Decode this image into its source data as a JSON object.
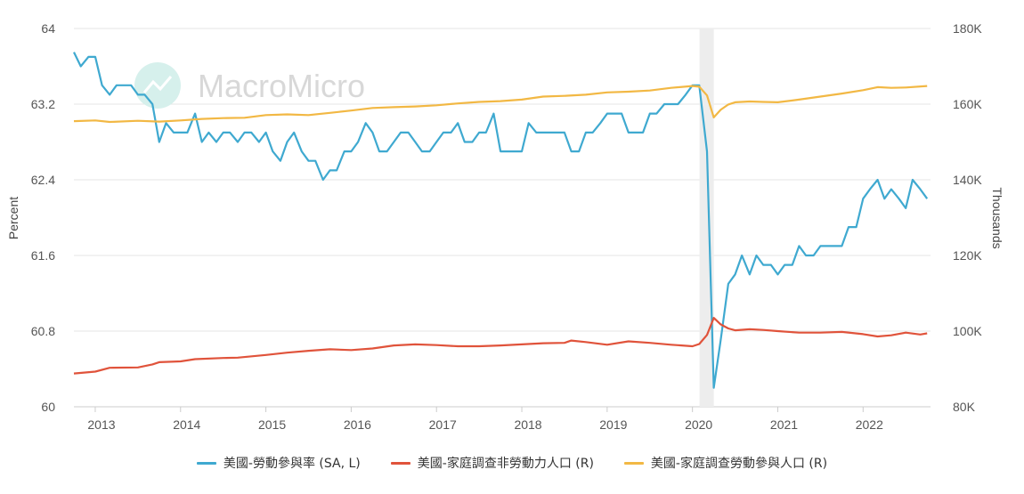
{
  "watermark": "MacroMicro",
  "chart_data": {
    "type": "line",
    "left_axis": {
      "label": "Percent",
      "ticks": [
        "64",
        "63.2",
        "62.4",
        "61.6",
        "60.8",
        "60"
      ],
      "range": [
        60,
        64
      ]
    },
    "right_axis": {
      "label": "Thousands",
      "ticks": [
        "180K",
        "160K",
        "140K",
        "120K",
        "100K",
        "80K"
      ],
      "range": [
        80,
        180
      ]
    },
    "x_ticks": [
      "2013",
      "2014",
      "2015",
      "2016",
      "2017",
      "2018",
      "2019",
      "2020",
      "2021",
      "2022"
    ],
    "x_range": [
      2012.75,
      2022.79
    ],
    "shaded_period": [
      "2020-02",
      "2020-04"
    ],
    "series": [
      {
        "name": "美國-勞動參與率 (SA, L)",
        "axis": "left",
        "color": "#3fa9d0",
        "x": [
          2012.75,
          2012.83,
          2012.92,
          2013.0,
          2013.08,
          2013.17,
          2013.25,
          2013.33,
          2013.42,
          2013.5,
          2013.58,
          2013.67,
          2013.75,
          2013.83,
          2013.92,
          2014.0,
          2014.08,
          2014.17,
          2014.25,
          2014.33,
          2014.42,
          2014.5,
          2014.58,
          2014.67,
          2014.75,
          2014.83,
          2014.92,
          2015.0,
          2015.08,
          2015.17,
          2015.25,
          2015.33,
          2015.42,
          2015.5,
          2015.58,
          2015.67,
          2015.75,
          2015.83,
          2015.92,
          2016.0,
          2016.08,
          2016.17,
          2016.25,
          2016.33,
          2016.42,
          2016.5,
          2016.58,
          2016.67,
          2016.75,
          2016.83,
          2016.92,
          2017.0,
          2017.08,
          2017.17,
          2017.25,
          2017.33,
          2017.42,
          2017.5,
          2017.58,
          2017.67,
          2017.75,
          2017.83,
          2017.92,
          2018.0,
          2018.08,
          2018.17,
          2018.25,
          2018.33,
          2018.42,
          2018.5,
          2018.58,
          2018.67,
          2018.75,
          2018.83,
          2018.92,
          2019.0,
          2019.08,
          2019.17,
          2019.25,
          2019.33,
          2019.42,
          2019.5,
          2019.58,
          2019.67,
          2019.75,
          2019.83,
          2019.92,
          2020.0,
          2020.08,
          2020.17,
          2020.25,
          2020.33,
          2020.42,
          2020.5,
          2020.58,
          2020.67,
          2020.75,
          2020.83,
          2020.92,
          2021.0,
          2021.08,
          2021.17,
          2021.25,
          2021.33,
          2021.42,
          2021.5,
          2021.58,
          2021.67,
          2021.75,
          2021.83,
          2021.92,
          2022.0,
          2022.08,
          2022.17,
          2022.25,
          2022.33,
          2022.42,
          2022.5,
          2022.58,
          2022.67,
          2022.75
        ],
        "values": [
          63.75,
          63.6,
          63.7,
          63.7,
          63.4,
          63.3,
          63.4,
          63.4,
          63.4,
          63.3,
          63.3,
          63.2,
          62.8,
          63.0,
          62.9,
          62.9,
          62.9,
          63.1,
          62.8,
          62.9,
          62.8,
          62.9,
          62.9,
          62.8,
          62.9,
          62.9,
          62.8,
          62.9,
          62.7,
          62.6,
          62.8,
          62.9,
          62.7,
          62.6,
          62.6,
          62.4,
          62.5,
          62.5,
          62.7,
          62.7,
          62.8,
          63.0,
          62.9,
          62.7,
          62.7,
          62.8,
          62.9,
          62.9,
          62.8,
          62.7,
          62.7,
          62.8,
          62.9,
          62.9,
          63.0,
          62.8,
          62.8,
          62.9,
          62.9,
          63.1,
          62.7,
          62.7,
          62.7,
          62.7,
          63.0,
          62.9,
          62.9,
          62.9,
          62.9,
          62.9,
          62.7,
          62.7,
          62.9,
          62.9,
          63.0,
          63.1,
          63.1,
          63.1,
          62.9,
          62.9,
          62.9,
          63.1,
          63.1,
          63.2,
          63.2,
          63.2,
          63.3,
          63.4,
          63.4,
          62.7,
          60.2,
          60.7,
          61.3,
          61.4,
          61.6,
          61.4,
          61.6,
          61.5,
          61.5,
          61.4,
          61.5,
          61.5,
          61.7,
          61.6,
          61.6,
          61.7,
          61.7,
          61.7,
          61.7,
          61.9,
          61.9,
          62.2,
          62.3,
          62.4,
          62.2,
          62.3,
          62.2,
          62.1,
          62.4,
          62.3,
          62.2
        ]
      },
      {
        "name": "美國-家庭調查非勞動力人口 (R)",
        "axis": "right",
        "color": "#e0533b",
        "x": [
          2012.75,
          2013.0,
          2013.17,
          2013.5,
          2013.67,
          2013.75,
          2014.0,
          2014.17,
          2014.5,
          2014.67,
          2015.0,
          2015.25,
          2015.5,
          2015.75,
          2016.0,
          2016.25,
          2016.5,
          2016.75,
          2017.0,
          2017.25,
          2017.5,
          2017.75,
          2018.0,
          2018.25,
          2018.5,
          2018.58,
          2018.75,
          2019.0,
          2019.25,
          2019.5,
          2019.75,
          2020.0,
          2020.08,
          2020.17,
          2020.25,
          2020.33,
          2020.42,
          2020.5,
          2020.67,
          2020.83,
          2021.0,
          2021.25,
          2021.5,
          2021.75,
          2022.0,
          2022.17,
          2022.33,
          2022.5,
          2022.67,
          2022.75
        ],
        "values": [
          88.8,
          89.3,
          90.3,
          90.4,
          91.2,
          91.8,
          92.0,
          92.6,
          92.9,
          93.0,
          93.7,
          94.3,
          94.8,
          95.2,
          95.0,
          95.4,
          96.2,
          96.5,
          96.3,
          96.0,
          96.0,
          96.2,
          96.5,
          96.8,
          96.9,
          97.5,
          97.1,
          96.4,
          97.3,
          96.9,
          96.4,
          96.0,
          96.6,
          99.0,
          103.5,
          101.8,
          100.7,
          100.2,
          100.5,
          100.3,
          100.0,
          99.6,
          99.6,
          99.8,
          99.2,
          98.6,
          98.9,
          99.6,
          99.1,
          99.4
        ]
      },
      {
        "name": "美國-家庭調查勞動參與人口 (R)",
        "axis": "right",
        "color": "#f2b844",
        "x": [
          2012.75,
          2013.0,
          2013.17,
          2013.5,
          2013.75,
          2014.0,
          2014.25,
          2014.5,
          2014.75,
          2015.0,
          2015.25,
          2015.5,
          2015.75,
          2016.0,
          2016.25,
          2016.5,
          2016.75,
          2017.0,
          2017.25,
          2017.5,
          2017.75,
          2018.0,
          2018.25,
          2018.5,
          2018.75,
          2019.0,
          2019.25,
          2019.5,
          2019.75,
          2020.0,
          2020.08,
          2020.17,
          2020.25,
          2020.33,
          2020.42,
          2020.5,
          2020.67,
          2020.83,
          2021.0,
          2021.25,
          2021.5,
          2021.75,
          2022.0,
          2022.17,
          2022.33,
          2022.5,
          2022.75
        ],
        "values": [
          155.5,
          155.7,
          155.3,
          155.6,
          155.4,
          155.7,
          156.1,
          156.3,
          156.4,
          157.1,
          157.3,
          157.1,
          157.7,
          158.3,
          159.0,
          159.2,
          159.4,
          159.7,
          160.2,
          160.6,
          160.8,
          161.2,
          162.0,
          162.2,
          162.5,
          163.1,
          163.3,
          163.6,
          164.3,
          164.8,
          164.6,
          162.3,
          156.5,
          158.5,
          159.9,
          160.5,
          160.7,
          160.6,
          160.5,
          161.2,
          162.0,
          162.8,
          163.7,
          164.5,
          164.3,
          164.4,
          164.8
        ]
      }
    ]
  }
}
